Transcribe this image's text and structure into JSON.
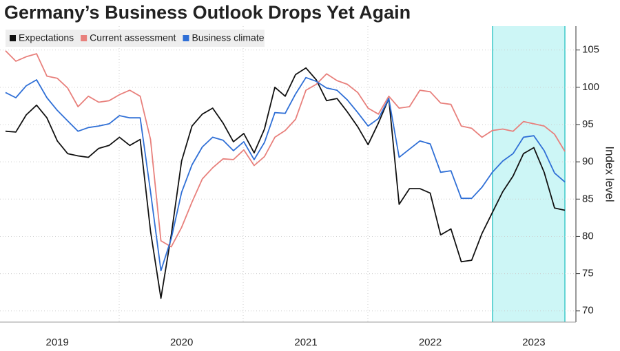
{
  "chart_data": {
    "type": "line",
    "title": "Germany’s Business Outlook Drops Yet Again",
    "y_label": "Index level",
    "categories": [
      null,
      null,
      null,
      null,
      null,
      "2019",
      null,
      null,
      null,
      null,
      null,
      null,
      null,
      null,
      null,
      null,
      null,
      "2020",
      null,
      null,
      null,
      null,
      null,
      null,
      null,
      null,
      null,
      null,
      null,
      "2021",
      null,
      null,
      null,
      null,
      null,
      null,
      null,
      null,
      null,
      null,
      null,
      "2022",
      null,
      null,
      null,
      null,
      null,
      null,
      null,
      null,
      null,
      "2023",
      null,
      null,
      null
    ],
    "series": [
      {
        "name": "Expectations",
        "color": "#111111",
        "values": [
          94.1,
          94.0,
          96.3,
          97.6,
          95.9,
          92.8,
          91.1,
          90.8,
          90.6,
          91.8,
          92.2,
          93.3,
          92.2,
          93.0,
          80.7,
          71.7,
          80.2,
          90.1,
          94.8,
          96.4,
          97.2,
          95.2,
          92.7,
          93.8,
          91.2,
          94.4,
          100.0,
          98.8,
          101.7,
          102.6,
          101.0,
          98.2,
          98.5,
          96.7,
          94.7,
          92.3,
          95.2,
          98.5,
          84.3,
          86.4,
          86.4,
          85.8,
          80.2,
          81.0,
          76.6,
          76.8,
          80.4,
          83.2,
          86.0,
          88.1,
          91.1,
          91.9,
          88.6,
          83.8,
          83.5
        ]
      },
      {
        "name": "Current assessment",
        "color": "#e8807c",
        "values": [
          104.9,
          103.5,
          104.1,
          104.5,
          101.5,
          101.2,
          99.9,
          97.4,
          98.8,
          98.0,
          98.2,
          99.0,
          99.6,
          98.8,
          93.0,
          79.4,
          78.6,
          81.2,
          84.6,
          87.7,
          89.2,
          90.4,
          90.3,
          91.6,
          89.5,
          90.7,
          93.3,
          94.2,
          95.7,
          99.6,
          100.4,
          101.8,
          100.9,
          100.4,
          99.3,
          97.2,
          96.4,
          98.8,
          97.2,
          97.4,
          99.6,
          99.4,
          97.9,
          97.7,
          94.8,
          94.5,
          93.3,
          94.2,
          94.4,
          94.1,
          95.4,
          95.1,
          94.8,
          93.7,
          91.4
        ]
      },
      {
        "name": "Business climate",
        "color": "#2f6fd6",
        "values": [
          99.3,
          98.6,
          100.2,
          101.0,
          98.6,
          96.9,
          95.5,
          94.1,
          94.6,
          94.8,
          95.1,
          96.2,
          95.9,
          95.9,
          86.0,
          75.4,
          79.7,
          85.9,
          89.6,
          92.0,
          93.3,
          92.9,
          91.5,
          92.7,
          90.3,
          92.6,
          96.6,
          96.5,
          99.1,
          101.3,
          100.8,
          99.9,
          99.6,
          98.3,
          96.6,
          94.8,
          95.8,
          98.5,
          90.6,
          91.7,
          92.8,
          92.4,
          88.6,
          88.8,
          85.1,
          85.1,
          86.6,
          88.6,
          90.1,
          91.1,
          93.3,
          93.5,
          91.5,
          88.5,
          87.3
        ]
      }
    ],
    "ylim": [
      68.5,
      108.2
    ],
    "yticks": [
      70,
      75,
      80,
      85,
      90,
      95,
      100,
      105
    ],
    "grid": true
  }
}
